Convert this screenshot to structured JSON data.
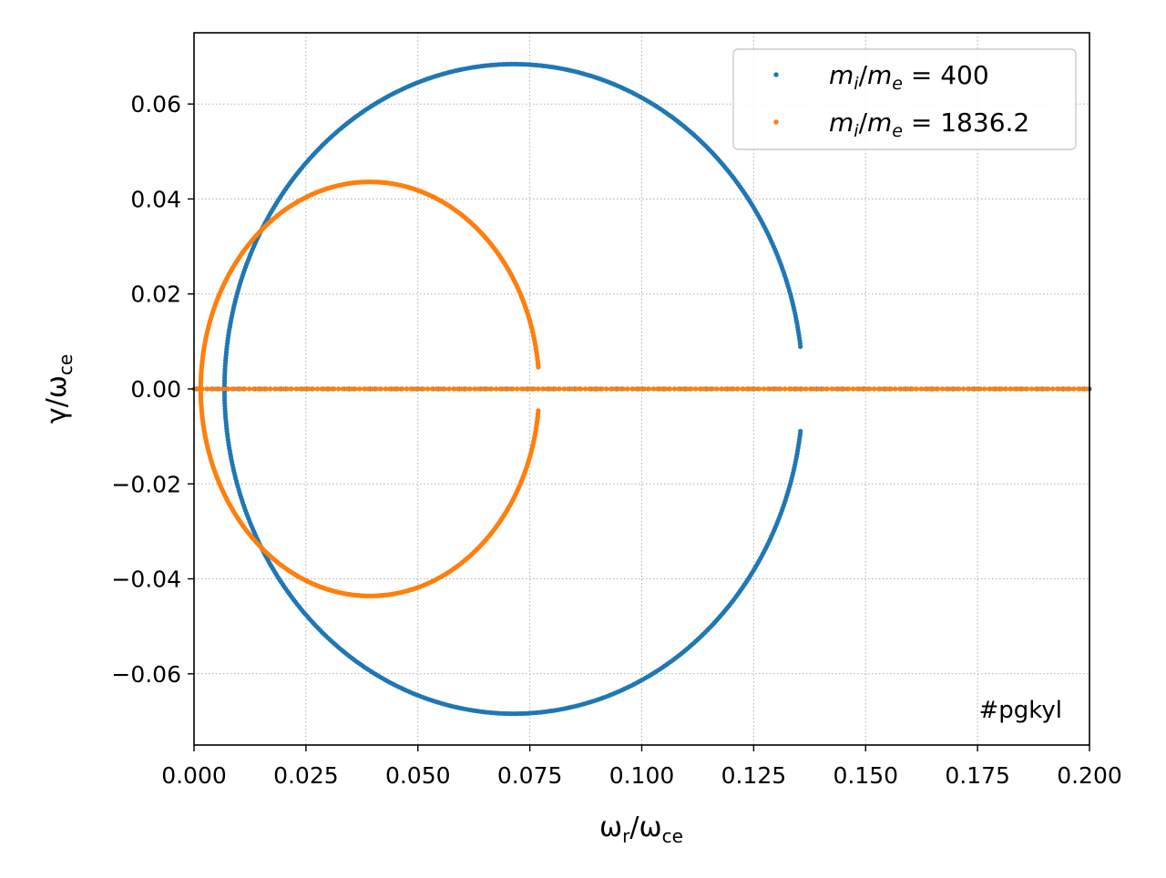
{
  "chart_data": {
    "type": "scatter",
    "xlabel": "ω_r/ω_ce",
    "ylabel": "γ/ω_ce",
    "xlim": [
      0.0,
      0.2
    ],
    "ylim": [
      -0.075,
      0.075
    ],
    "xticks": [
      "0.000",
      "0.025",
      "0.050",
      "0.075",
      "0.100",
      "0.125",
      "0.150",
      "0.175",
      "0.200"
    ],
    "xtick_values": [
      0.0,
      0.025,
      0.05,
      0.075,
      0.1,
      0.125,
      0.15,
      0.175,
      0.2
    ],
    "yticks": [
      "−0.06",
      "−0.04",
      "−0.02",
      "0.00",
      "0.02",
      "0.04",
      "0.06"
    ],
    "ytick_values": [
      -0.06,
      -0.04,
      -0.02,
      0.0,
      0.02,
      0.04,
      0.06
    ],
    "grid": true,
    "legend_position": "top-right",
    "annotation": "#pgkyl",
    "series": [
      {
        "name": "m_i/m_e = 400",
        "color": "#1f77b4",
        "shape": "closed loop from near the origin: left edge at ω_r≈0.0068, top γ≈0.068 at ω_r≈0.068, right edge ω_r≈0.136 near γ≈±0.009, symmetric bottom γ≈−0.068; plus points along γ=0",
        "loop": {
          "cx": 0.0714,
          "a": 0.0646,
          "b": 0.0684,
          "gap": 0.0086
        },
        "axis_points_x_range": [
          0.0,
          0.2
        ]
      },
      {
        "name": "m_i/m_e = 1836.2",
        "color": "#ff7f0e",
        "shape": "closed loop from near the origin: left edge at ω_r≈0.0015, top γ≈0.0435 at ω_r≈0.035, right edge ω_r≈0.077 near γ≈±0.005, symmetric bottom γ≈−0.0435; plus points along γ=0",
        "loop": {
          "cx": 0.0393,
          "a": 0.0378,
          "b": 0.0436,
          "gap": 0.0045
        },
        "axis_points_x_range": [
          0.0,
          0.2
        ]
      }
    ]
  }
}
